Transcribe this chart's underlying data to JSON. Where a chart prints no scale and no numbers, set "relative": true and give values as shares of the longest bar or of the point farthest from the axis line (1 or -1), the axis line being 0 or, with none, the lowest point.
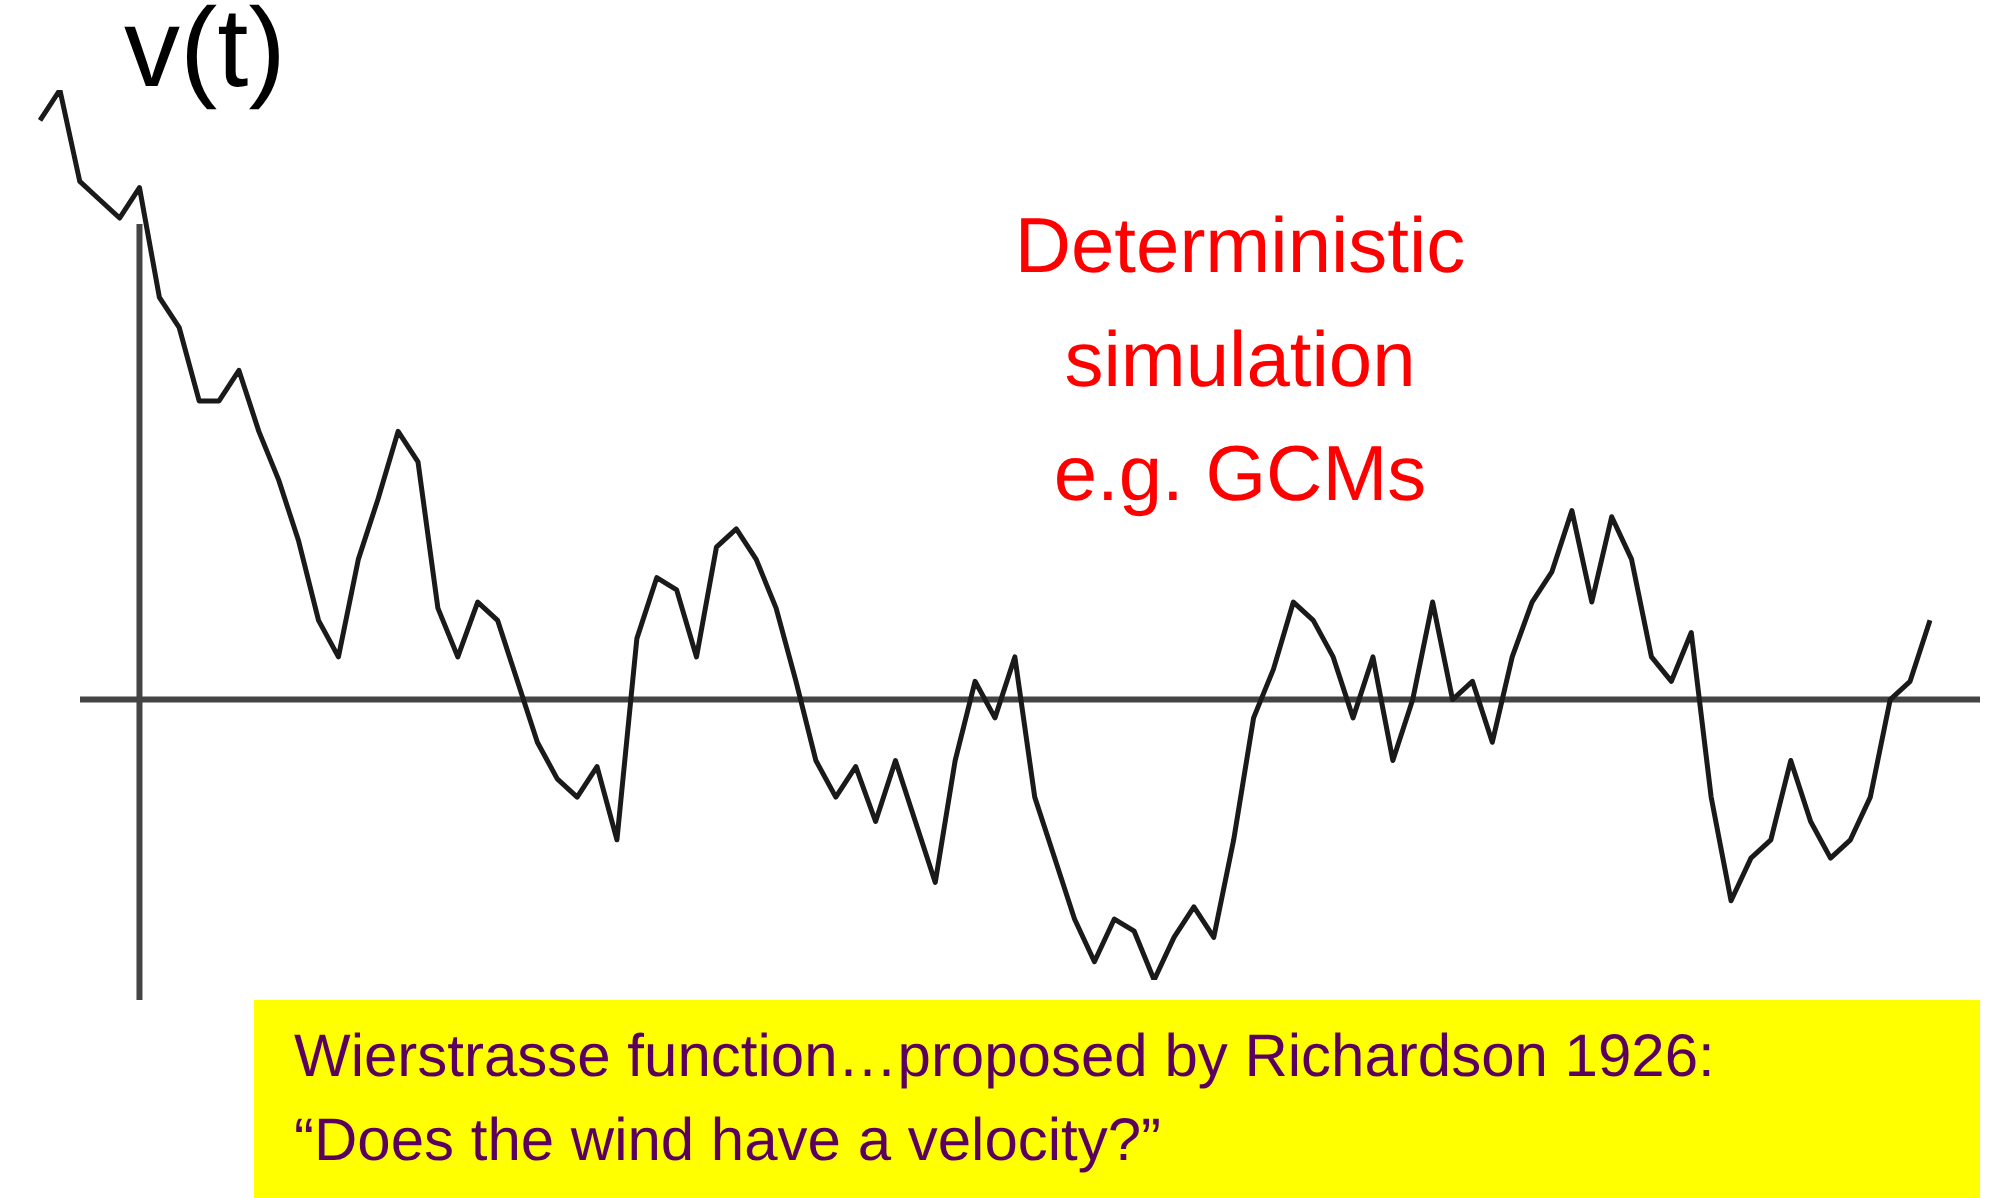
{
  "chart_data": {
    "type": "line",
    "relative": true,
    "ylabel": "v(t)",
    "color": "#1a1a1a",
    "marker": "none",
    "line_style": "solid",
    "categories": [
      null,
      null,
      null,
      null,
      null,
      null,
      null,
      null,
      null,
      null,
      null,
      null,
      null,
      null,
      null,
      null,
      null,
      null,
      null,
      null,
      null,
      null,
      null,
      null,
      null,
      null,
      null,
      null,
      null,
      null,
      null,
      null,
      null,
      null,
      null,
      null,
      null,
      null,
      null,
      null,
      null,
      null,
      null,
      null,
      null,
      null,
      null,
      null,
      null,
      null,
      null,
      null,
      null,
      null,
      null,
      null,
      null,
      null,
      null,
      null,
      null,
      null,
      null,
      null,
      null,
      null,
      null,
      null,
      null,
      null,
      null,
      null,
      null,
      null,
      null,
      null,
      null,
      null,
      null,
      null,
      null,
      null,
      null,
      null,
      null,
      null,
      null,
      null,
      null,
      null,
      null,
      null,
      null,
      null,
      null,
      null
    ],
    "values": [
      0.95,
      1,
      0.85,
      0.82,
      0.79,
      0.84,
      0.66,
      0.61,
      0.49,
      0.49,
      0.54,
      0.44,
      0.36,
      0.26,
      0.13,
      0.07,
      0.23,
      0.33,
      0.44,
      0.39,
      0.15,
      0.07,
      0.16,
      0.13,
      0.03,
      -0.07,
      -0.13,
      -0.16,
      -0.11,
      -0.23,
      0.1,
      0.2,
      0.18,
      0.07,
      0.25,
      0.28,
      0.23,
      0.15,
      0.03,
      -0.1,
      -0.16,
      -0.11,
      -0.2,
      -0.1,
      -0.2,
      -0.3,
      -0.1,
      0.03,
      -0.03,
      0.07,
      -0.16,
      -0.26,
      -0.36,
      -0.43,
      -0.36,
      -0.38,
      -0.46,
      -0.39,
      -0.34,
      -0.39,
      -0.23,
      -0.03,
      0.05,
      0.16,
      0.13,
      0.07,
      -0.03,
      0.07,
      -0.1,
      0,
      0.16,
      0,
      0.03,
      -0.07,
      0.07,
      0.16,
      0.21,
      0.31,
      0.16,
      0.3,
      0.23,
      0.07,
      0.03,
      0.11,
      -0.16,
      -0.33,
      -0.26,
      -0.23,
      -0.1,
      -0.2,
      -0.26,
      -0.23,
      -0.16,
      0,
      0.03,
      0.13
    ],
    "annotations": [
      "Deterministic\nsimulation\ne.g. GCMs",
      "Wierstrasse function…proposed by Richardson 1926: “Does the wind have a velocity?”"
    ]
  }
}
